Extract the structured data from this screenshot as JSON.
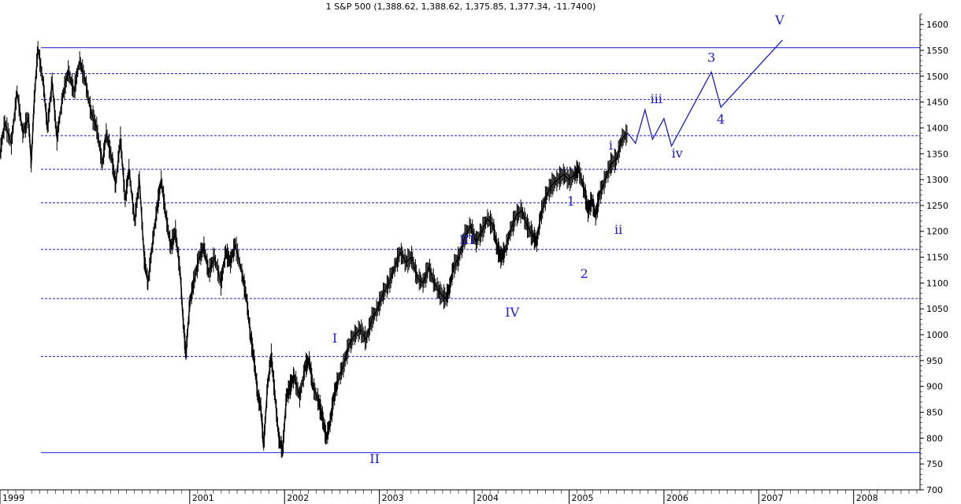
{
  "chart_data": {
    "type": "line",
    "title": "1 S&P 500 (1,388.62, 1,388.62, 1,375.85, 1,377.34, -11.7400)",
    "ylim": [
      700,
      1620
    ],
    "y_ticks": [
      700,
      750,
      800,
      850,
      900,
      950,
      1000,
      1050,
      1100,
      1150,
      1200,
      1250,
      1300,
      1350,
      1400,
      1450,
      1500,
      1550,
      1600
    ],
    "x_range": [
      1999.0,
      2008.7
    ],
    "x_ticks": [
      {
        "x": 1999.0,
        "label": "1999"
      },
      {
        "x": 2001.0,
        "label": "2001"
      },
      {
        "x": 2002.0,
        "label": "2002"
      },
      {
        "x": 2003.0,
        "label": "2003"
      },
      {
        "x": 2004.0,
        "label": "2004"
      },
      {
        "x": 2005.0,
        "label": "2005"
      },
      {
        "x": 2006.0,
        "label": "2006"
      },
      {
        "x": 2007.0,
        "label": "2007"
      },
      {
        "x": 2008.0,
        "label": "2008"
      }
    ],
    "grid": "horizontal dashed at key levels",
    "levels": [
      {
        "y": 1555,
        "style": "solid"
      },
      {
        "y": 1505,
        "style": "dashed"
      },
      {
        "y": 1455,
        "style": "dashed"
      },
      {
        "y": 1385,
        "style": "dashed"
      },
      {
        "y": 1320,
        "style": "dashed"
      },
      {
        "y": 1255,
        "style": "dashed"
      },
      {
        "y": 1165,
        "style": "dashed"
      },
      {
        "y": 1070,
        "style": "dashed"
      },
      {
        "y": 958,
        "style": "dashed"
      },
      {
        "y": 772,
        "style": "solid"
      }
    ],
    "price": [
      [
        1999.0,
        1350
      ],
      [
        1999.05,
        1410
      ],
      [
        1999.12,
        1370
      ],
      [
        1999.18,
        1470
      ],
      [
        1999.24,
        1390
      ],
      [
        1999.3,
        1420
      ],
      [
        1999.33,
        1330
      ],
      [
        1999.36,
        1450
      ],
      [
        1999.4,
        1555
      ],
      [
        1999.46,
        1480
      ],
      [
        1999.5,
        1400
      ],
      [
        1999.55,
        1490
      ],
      [
        1999.6,
        1380
      ],
      [
        1999.66,
        1460
      ],
      [
        1999.72,
        1510
      ],
      [
        1999.78,
        1470
      ],
      [
        1999.84,
        1530
      ],
      [
        1999.9,
        1490
      ],
      [
        1999.96,
        1430
      ],
      [
        2000.02,
        1400
      ],
      [
        2000.08,
        1330
      ],
      [
        2000.12,
        1390
      ],
      [
        2000.18,
        1340
      ],
      [
        2000.22,
        1290
      ],
      [
        2000.27,
        1380
      ],
      [
        2000.32,
        1260
      ],
      [
        2000.36,
        1320
      ],
      [
        2000.42,
        1220
      ],
      [
        2000.47,
        1300
      ],
      [
        2000.52,
        1150
      ],
      [
        2000.56,
        1100
      ],
      [
        2000.61,
        1180
      ],
      [
        2000.66,
        1250
      ],
      [
        2000.7,
        1300
      ],
      [
        2000.75,
        1230
      ],
      [
        2000.8,
        1170
      ],
      [
        2000.85,
        1200
      ],
      [
        2000.9,
        1120
      ],
      [
        2000.93,
        1030
      ],
      [
        2000.96,
        960
      ],
      [
        2001.0,
        1060
      ],
      [
        2001.04,
        1100
      ],
      [
        2001.1,
        1150
      ],
      [
        2001.15,
        1170
      ],
      [
        2001.2,
        1120
      ],
      [
        2001.26,
        1150
      ],
      [
        2001.33,
        1100
      ],
      [
        2001.38,
        1160
      ],
      [
        2001.43,
        1140
      ],
      [
        2001.48,
        1175
      ],
      [
        2001.55,
        1120
      ],
      [
        2001.6,
        1070
      ],
      [
        2001.64,
        1000
      ],
      [
        2001.68,
        950
      ],
      [
        2001.72,
        880
      ],
      [
        2001.75,
        860
      ],
      [
        2001.78,
        785
      ],
      [
        2001.82,
        900
      ],
      [
        2001.86,
        960
      ],
      [
        2001.9,
        880
      ],
      [
        2001.94,
        800
      ],
      [
        2001.98,
        775
      ],
      [
        2002.02,
        880
      ],
      [
        2002.06,
        900
      ],
      [
        2002.1,
        920
      ],
      [
        2002.16,
        880
      ],
      [
        2002.22,
        940
      ],
      [
        2002.26,
        950
      ],
      [
        2002.3,
        900
      ],
      [
        2002.36,
        870
      ],
      [
        2002.4,
        840
      ],
      [
        2002.44,
        800
      ],
      [
        2002.48,
        830
      ],
      [
        2002.52,
        880
      ],
      [
        2002.56,
        910
      ],
      [
        2002.62,
        940
      ],
      [
        2002.68,
        980
      ],
      [
        2002.74,
        1000
      ],
      [
        2002.8,
        1010
      ],
      [
        2002.86,
        990
      ],
      [
        2002.92,
        1030
      ],
      [
        2002.98,
        1050
      ],
      [
        2003.04,
        1080
      ],
      [
        2003.1,
        1100
      ],
      [
        2003.16,
        1130
      ],
      [
        2003.22,
        1160
      ],
      [
        2003.28,
        1140
      ],
      [
        2003.34,
        1150
      ],
      [
        2003.4,
        1110
      ],
      [
        2003.46,
        1100
      ],
      [
        2003.52,
        1130
      ],
      [
        2003.58,
        1100
      ],
      [
        2003.64,
        1080
      ],
      [
        2003.7,
        1070
      ],
      [
        2003.74,
        1090
      ],
      [
        2003.78,
        1130
      ],
      [
        2003.84,
        1150
      ],
      [
        2003.9,
        1190
      ],
      [
        2003.96,
        1210
      ],
      [
        2004.02,
        1180
      ],
      [
        2004.08,
        1200
      ],
      [
        2004.14,
        1225
      ],
      [
        2004.2,
        1210
      ],
      [
        2004.24,
        1170
      ],
      [
        2004.28,
        1150
      ],
      [
        2004.32,
        1160
      ],
      [
        2004.38,
        1200
      ],
      [
        2004.44,
        1230
      ],
      [
        2004.5,
        1240
      ],
      [
        2004.56,
        1210
      ],
      [
        2004.62,
        1190
      ],
      [
        2004.66,
        1180
      ],
      [
        2004.7,
        1230
      ],
      [
        2004.76,
        1270
      ],
      [
        2004.82,
        1290
      ],
      [
        2004.88,
        1300
      ],
      [
        2004.94,
        1310
      ],
      [
        2005.0,
        1300
      ],
      [
        2005.06,
        1310
      ],
      [
        2005.1,
        1320
      ],
      [
        2005.16,
        1280
      ],
      [
        2005.2,
        1240
      ],
      [
        2005.24,
        1260
      ],
      [
        2005.28,
        1230
      ],
      [
        2005.32,
        1270
      ],
      [
        2005.38,
        1300
      ],
      [
        2005.44,
        1330
      ],
      [
        2005.5,
        1340
      ],
      [
        2005.56,
        1380
      ],
      [
        2005.62,
        1390
      ]
    ],
    "projection": [
      [
        2005.62,
        1390
      ],
      [
        2005.7,
        1370
      ],
      [
        2005.8,
        1435
      ],
      [
        2005.88,
        1378
      ],
      [
        2006.0,
        1418
      ],
      [
        2006.08,
        1365
      ],
      [
        2006.5,
        1508
      ],
      [
        2006.6,
        1440
      ],
      [
        2007.25,
        1570
      ]
    ],
    "wave_labels": [
      {
        "text": "I",
        "x": 2002.53,
        "y": 985
      },
      {
        "text": "II",
        "x": 2002.95,
        "y": 752
      },
      {
        "text": "III",
        "x": 2003.92,
        "y": 1175
      },
      {
        "text": "IV",
        "x": 2004.4,
        "y": 1035
      },
      {
        "text": "1",
        "x": 2005.02,
        "y": 1250
      },
      {
        "text": "2",
        "x": 2005.16,
        "y": 1110
      },
      {
        "text": "i",
        "x": 2005.44,
        "y": 1358
      },
      {
        "text": "ii",
        "x": 2005.52,
        "y": 1195
      },
      {
        "text": "iii",
        "x": 2005.92,
        "y": 1448
      },
      {
        "text": "iv",
        "x": 2006.14,
        "y": 1343
      },
      {
        "text": "3",
        "x": 2006.5,
        "y": 1528
      },
      {
        "text": "4",
        "x": 2006.6,
        "y": 1408
      },
      {
        "text": "V",
        "x": 2007.22,
        "y": 1600
      }
    ],
    "colors": {
      "price": "#000000",
      "levels": "#1a1ad8",
      "projection": "#1a1ad8",
      "labels": "#1a1ad8"
    }
  }
}
